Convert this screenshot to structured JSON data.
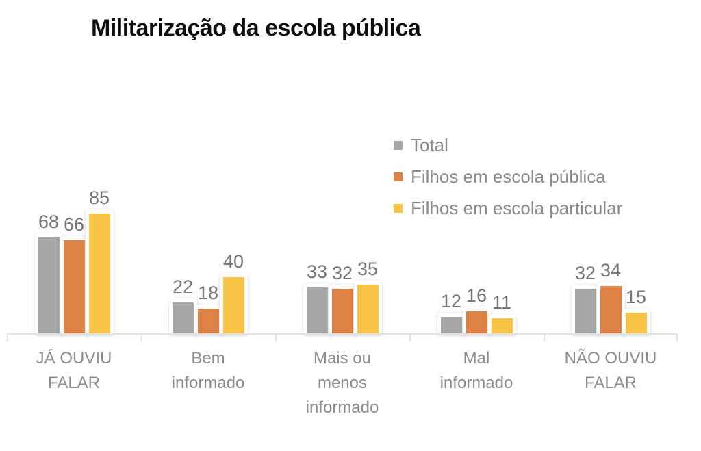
{
  "title": "Militarização da escola pública",
  "chart_data": {
    "type": "bar",
    "title": "Militarização da escola pública",
    "categories": [
      "JÁ OUVIU FALAR",
      "Bem informado",
      "Mais ou menos informado",
      "Mal informado",
      "NÃO OUVIU FALAR"
    ],
    "category_lines": [
      [
        "JÁ OUVIU",
        "FALAR"
      ],
      [
        "Bem",
        "informado"
      ],
      [
        "Mais ou",
        "menos",
        "informado"
      ],
      [
        "Mal",
        "informado"
      ],
      [
        "NÃO OUVIU",
        "FALAR"
      ]
    ],
    "series": [
      {
        "name": "Total",
        "color": "#a7a7a7",
        "values": [
          68,
          22,
          33,
          12,
          32
        ]
      },
      {
        "name": "Filhos em escola pública",
        "color": "#de8145",
        "values": [
          66,
          18,
          32,
          16,
          34
        ]
      },
      {
        "name": "Filhos em escola particular",
        "color": "#f7c445",
        "values": [
          85,
          40,
          35,
          11,
          15
        ]
      }
    ],
    "ylim": [
      0,
      85
    ],
    "xlabel": "",
    "ylabel": "",
    "data_labels": true,
    "grid": false,
    "legend_position": "right-top",
    "colors": {
      "axis": "#e2e2e2",
      "data_label_text": "#767676",
      "category_label_text": "#8c8c8c",
      "legend_text": "#8a8a8a",
      "title_text": "#0d0d0d"
    }
  }
}
